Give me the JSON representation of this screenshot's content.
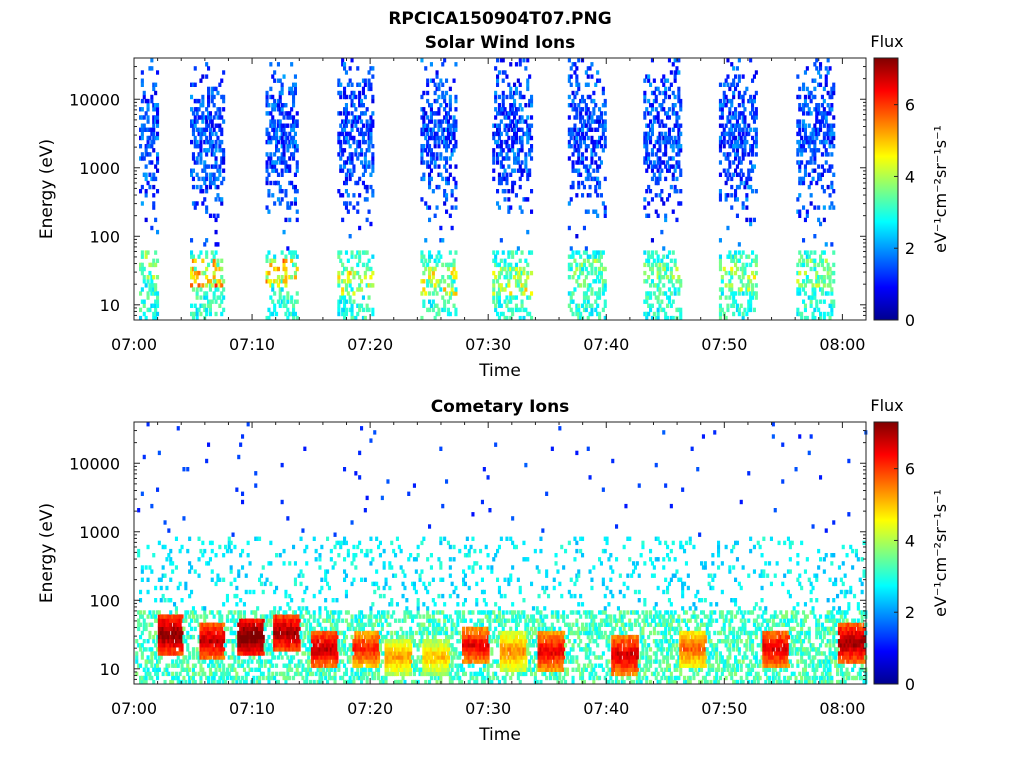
{
  "figure": {
    "title": "RPCICA150904T07.PNG"
  },
  "colormap": "jet",
  "chart_data": [
    {
      "type": "heatmap",
      "title": "Solar Wind Ions",
      "xlabel": "Time",
      "ylabel": "Energy (eV)",
      "xlim": [
        "07:00",
        "08:02"
      ],
      "x_ticks": [
        "07:00",
        "07:10",
        "07:20",
        "07:30",
        "07:40",
        "07:50",
        "08:00"
      ],
      "y_scale": "log",
      "ylim": [
        6,
        40000
      ],
      "y_ticks": [
        10,
        100,
        1000,
        10000
      ],
      "y_tick_labels": [
        "10",
        "100",
        "1000",
        "10000"
      ],
      "colorbar": {
        "label": "Flux",
        "unit_label": "eV⁻¹cm⁻²sr⁻¹s⁻¹",
        "range": [
          0,
          7.3
        ],
        "ticks": [
          0,
          2,
          4,
          6
        ],
        "tick_labels": [
          "0",
          "2",
          "4",
          "6"
        ]
      },
      "grid": false,
      "sweep_bursts_minutes": [
        {
          "start": 0.3,
          "end": 2.0,
          "peak_flux": 3.5,
          "peak_energy_eV": 40
        },
        {
          "start": 4.6,
          "end": 7.5,
          "peak_flux": 5.2,
          "peak_energy_eV": 28
        },
        {
          "start": 11.0,
          "end": 13.8,
          "peak_flux": 5.2,
          "peak_energy_eV": 30
        },
        {
          "start": 17.2,
          "end": 20.2,
          "peak_flux": 4.4,
          "peak_energy_eV": 22
        },
        {
          "start": 24.2,
          "end": 27.2,
          "peak_flux": 4.4,
          "peak_energy_eV": 22
        },
        {
          "start": 30.2,
          "end": 33.6,
          "peak_flux": 4.2,
          "peak_energy_eV": 22
        },
        {
          "start": 36.6,
          "end": 39.8,
          "peak_flux": 3.5,
          "peak_energy_eV": 30
        },
        {
          "start": 43.0,
          "end": 46.2,
          "peak_flux": 3.5,
          "peak_energy_eV": 30
        },
        {
          "start": 49.4,
          "end": 52.6,
          "peak_flux": 4.0,
          "peak_energy_eV": 25
        },
        {
          "start": 56.0,
          "end": 59.2,
          "peak_flux": 3.5,
          "peak_energy_eV": 30
        }
      ]
    },
    {
      "type": "heatmap",
      "title": "Cometary Ions",
      "xlabel": "Time",
      "ylabel": "Energy (eV)",
      "xlim": [
        "07:00",
        "08:02"
      ],
      "x_ticks": [
        "07:00",
        "07:10",
        "07:20",
        "07:30",
        "07:40",
        "07:50",
        "08:00"
      ],
      "y_scale": "log",
      "ylim": [
        6,
        40000
      ],
      "y_ticks": [
        10,
        100,
        1000,
        10000
      ],
      "y_tick_labels": [
        "10",
        "100",
        "1000",
        "10000"
      ],
      "colorbar": {
        "label": "Flux",
        "unit_label": "eV⁻¹cm⁻²sr⁻¹s⁻¹",
        "range": [
          0,
          7.3
        ],
        "ticks": [
          0,
          2,
          4,
          6
        ],
        "tick_labels": [
          "0",
          "2",
          "4",
          "6"
        ]
      },
      "grid": false,
      "hot_spots": [
        {
          "minute": 3.0,
          "energy_eV": 32,
          "flux": 7.0
        },
        {
          "minute": 6.5,
          "energy_eV": 26,
          "flux": 6.6
        },
        {
          "minute": 9.8,
          "energy_eV": 30,
          "flux": 7.2
        },
        {
          "minute": 12.8,
          "energy_eV": 34,
          "flux": 6.8
        },
        {
          "minute": 16.0,
          "energy_eV": 20,
          "flux": 6.6
        },
        {
          "minute": 19.5,
          "energy_eV": 20,
          "flux": 6.0
        },
        {
          "minute": 22.3,
          "energy_eV": 15,
          "flux": 5.0
        },
        {
          "minute": 25.5,
          "energy_eV": 15,
          "flux": 4.8
        },
        {
          "minute": 28.8,
          "energy_eV": 22,
          "flux": 6.3
        },
        {
          "minute": 32.0,
          "energy_eV": 18,
          "flux": 5.2
        },
        {
          "minute": 35.2,
          "energy_eV": 18,
          "flux": 6.3
        },
        {
          "minute": 41.4,
          "energy_eV": 16,
          "flux": 6.5
        },
        {
          "minute": 47.2,
          "energy_eV": 20,
          "flux": 5.5
        },
        {
          "minute": 54.3,
          "energy_eV": 20,
          "flux": 6.4
        },
        {
          "minute": 60.6,
          "energy_eV": 24,
          "flux": 6.8
        }
      ]
    }
  ]
}
